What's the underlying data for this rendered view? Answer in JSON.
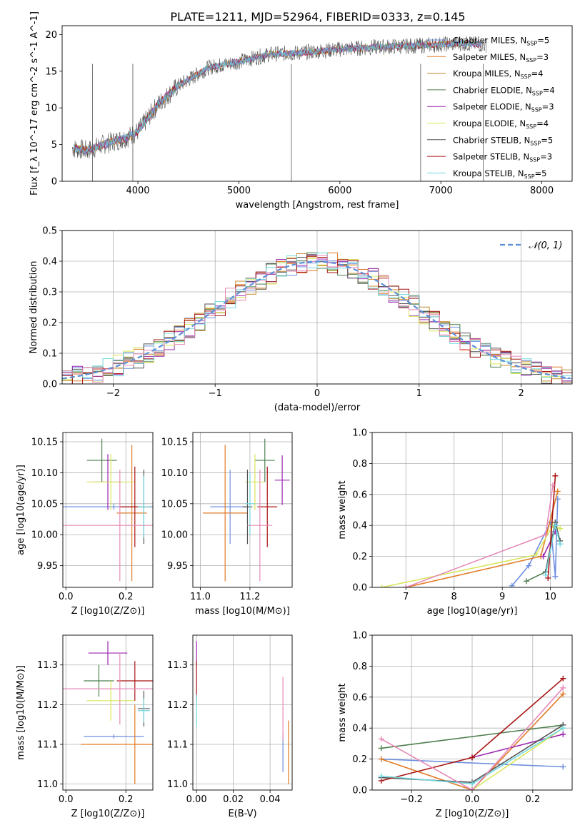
{
  "figure": {
    "title": "PLATE=1211, MJD=52964, FIBERID=0333, z=0.145"
  },
  "colors": {
    "Chabrier MILES": "#6f8fdf",
    "Salpeter MILES": "#e07b26",
    "Kroupa MILES": "#c08a2a",
    "Chabrier ELODIE": "#4f7f4f",
    "Salpeter ELODIE": "#9b27af",
    "Kroupa ELODIE": "#d9e65a",
    "Chabrier STELIB": "#555555",
    "Salpeter STELIB": "#aa1515",
    "Kroupa STELIB": "#70d8df",
    "extra": "#e68ab8",
    "normal": "#5b8fd6"
  },
  "chart_data": [
    {
      "id": "spectrum",
      "type": "line",
      "title": "PLATE=1211, MJD=52964, FIBERID=0333, z=0.145",
      "xlabel": "wavelength [Angstrom, rest frame]",
      "ylabel": "Flux [f_λ 10^-17 erg cm^-2 s^-1 A^-1]",
      "xlim": [
        3250,
        8300
      ],
      "ylim": [
        0,
        21.2
      ],
      "xticks": [
        4000,
        5000,
        6000,
        7000,
        8000
      ],
      "yticks": [
        0,
        5,
        10,
        15,
        20
      ],
      "grid": false,
      "legend_position": "top-right",
      "legend": [
        {
          "label": "Chabrier MILES, N",
          "sub": "SSP",
          "tail": "=5"
        },
        {
          "label": "Salpeter MILES, N",
          "sub": "SSP",
          "tail": "=3"
        },
        {
          "label": "Kroupa MILES, N",
          "sub": "SSP",
          "tail": "=4"
        },
        {
          "label": "Chabrier ELODIE, N",
          "sub": "SSP",
          "tail": "=4"
        },
        {
          "label": "Salpeter ELODIE, N",
          "sub": "SSP",
          "tail": "=3"
        },
        {
          "label": "Kroupa ELODIE, N",
          "sub": "SSP",
          "tail": "=4"
        },
        {
          "label": "Chabrier STELIB, N",
          "sub": "SSP",
          "tail": "=5"
        },
        {
          "label": "Salpeter STELIB, N",
          "sub": "SSP",
          "tail": "=3"
        },
        {
          "label": "Kroupa STELIB, N",
          "sub": "SSP",
          "tail": "=5"
        }
      ],
      "continuum_x": [
        3350,
        3500,
        3700,
        3900,
        4000,
        4200,
        4400,
        4700,
        5000,
        5300,
        5600,
        6000,
        6400,
        6800,
        7200,
        7450
      ],
      "continuum_y": [
        4.5,
        4.2,
        5.2,
        6.0,
        6.8,
        10.5,
        13.0,
        15.5,
        16.3,
        17.3,
        17.5,
        18.0,
        18.3,
        18.5,
        18.8,
        18.6
      ],
      "spikes": [
        [
          3550,
          0
        ],
        [
          3950,
          0
        ],
        [
          5520,
          0
        ],
        [
          6800,
          0
        ],
        [
          7420,
          0
        ]
      ]
    },
    {
      "id": "residuals",
      "type": "line",
      "xlabel": "(data-model)/error",
      "ylabel": "Normed distribution",
      "xlim": [
        -2.5,
        2.5
      ],
      "ylim": [
        0,
        0.5
      ],
      "xticks": [
        -2,
        -1,
        0,
        1,
        2
      ],
      "yticks": [
        0.0,
        0.1,
        0.2,
        0.3,
        0.4,
        0.5
      ],
      "grid": true,
      "legend_position": "top-right",
      "legend": [
        {
          "label": "𝒩(0, 1)"
        }
      ],
      "bin_width": 0.1,
      "series_note": "9 step histograms scattered around N(0,1)"
    },
    {
      "id": "age-vs-Z",
      "type": "scatter",
      "xlabel": "Z [log10(Z/Z⊙)]",
      "ylabel": "age [log10(age/yr)]",
      "xlim": [
        -0.01,
        0.29
      ],
      "ylim": [
        9.915,
        10.165
      ],
      "xticks": [
        0.0,
        0.2
      ],
      "yticks": [
        9.95,
        10.0,
        10.05,
        10.1,
        10.15
      ],
      "grid": true,
      "points": [
        {
          "series": "Chabrier MILES",
          "x": 0.16,
          "xerr": 0.2,
          "y": 10.045,
          "yerr": 0.005
        },
        {
          "series": "Salpeter MILES",
          "x": 0.22,
          "xerr": 0.05,
          "y": 10.035,
          "yerr": 0.11
        },
        {
          "series": "Chabrier ELODIE",
          "x": 0.12,
          "xerr": 0.05,
          "y": 10.12,
          "yerr": 0.035
        },
        {
          "series": "Salpeter ELODIE",
          "x": 0.14,
          "xerr": 0.05,
          "y": 10.085,
          "yerr": 0.045
        },
        {
          "series": "Kroupa ELODIE",
          "x": 0.15,
          "xerr": 0.08,
          "y": 10.085,
          "yerr": 0.045
        },
        {
          "series": "Chabrier STELIB",
          "x": 0.26,
          "xerr": 0.02,
          "y": 10.045,
          "yerr": 0.06
        },
        {
          "series": "Salpeter STELIB",
          "x": 0.23,
          "xerr": 0.05,
          "y": 10.045,
          "yerr": 0.065
        },
        {
          "series": "Kroupa STELIB",
          "x": 0.26,
          "xerr": 0.02,
          "y": 10.045,
          "yerr": 0.05
        },
        {
          "series": "extra",
          "x": 0.18,
          "xerr": 0.2,
          "y": 10.015,
          "yerr": 0.09
        }
      ]
    },
    {
      "id": "age-vs-mass",
      "type": "scatter",
      "xlabel": "mass [log10(M/M⊙)]",
      "xlim": [
        10.97,
        11.37
      ],
      "ylim": [
        9.915,
        10.165
      ],
      "xticks": [
        11.0,
        11.2
      ],
      "yticks": [
        9.95,
        10.0,
        10.05,
        10.1,
        10.15
      ],
      "grid": true,
      "points": [
        {
          "series": "Chabrier MILES",
          "x": 11.12,
          "xerr": 0.08,
          "y": 10.045,
          "yerr": 0.06
        },
        {
          "series": "Salpeter MILES",
          "x": 11.1,
          "xerr": 0.09,
          "y": 10.035,
          "yerr": 0.11
        },
        {
          "series": "Chabrier ELODIE",
          "x": 11.26,
          "xerr": 0.04,
          "y": 10.12,
          "yerr": 0.035
        },
        {
          "series": "Salpeter ELODIE",
          "x": 11.33,
          "xerr": 0.03,
          "y": 10.088,
          "yerr": 0.04
        },
        {
          "series": "Kroupa ELODIE",
          "x": 11.22,
          "xerr": 0.04,
          "y": 10.085,
          "yerr": 0.045
        },
        {
          "series": "Chabrier STELIB",
          "x": 11.19,
          "xerr": 0.02,
          "y": 10.045,
          "yerr": 0.06
        },
        {
          "series": "Salpeter STELIB",
          "x": 11.27,
          "xerr": 0.04,
          "y": 10.045,
          "yerr": 0.065
        },
        {
          "series": "Kroupa STELIB",
          "x": 11.2,
          "xerr": 0.02,
          "y": 10.05,
          "yerr": 0.05
        },
        {
          "series": "extra",
          "x": 11.24,
          "xerr": 0.05,
          "y": 10.015,
          "yerr": 0.09
        }
      ]
    },
    {
      "id": "massweight-vs-age",
      "type": "line",
      "xlabel": "age [log10(age/yr)]",
      "ylabel": "mass weight",
      "xlim": [
        6.3,
        10.45
      ],
      "ylim": [
        0.0,
        1.0
      ],
      "xticks": [
        7,
        8,
        9,
        10
      ],
      "yticks": [
        0.0,
        0.2,
        0.4,
        0.6,
        0.8,
        1.0
      ],
      "grid": true,
      "series": [
        {
          "name": "Chabrier MILES",
          "x": [
            9.2,
            9.55,
            10.0,
            10.1,
            10.15
          ],
          "y": [
            0.01,
            0.14,
            0.42,
            0.07,
            0.57
          ]
        },
        {
          "name": "Salpeter MILES",
          "x": [
            7.0,
            9.8,
            10.15
          ],
          "y": [
            0.0,
            0.2,
            0.62
          ]
        },
        {
          "name": "Chabrier ELODIE",
          "x": [
            9.5,
            9.9,
            10.1
          ],
          "y": [
            0.04,
            0.1,
            0.42
          ]
        },
        {
          "name": "Salpeter ELODIE",
          "x": [
            9.85,
            10.1
          ],
          "y": [
            0.2,
            0.36
          ]
        },
        {
          "name": "Kroupa ELODIE",
          "x": [
            6.5,
            9.7,
            10.05,
            10.2
          ],
          "y": [
            0.0,
            0.21,
            0.4,
            0.38
          ]
        },
        {
          "name": "Chabrier STELIB",
          "x": [
            9.9,
            10.1,
            10.2
          ],
          "y": [
            0.1,
            0.42,
            0.3
          ]
        },
        {
          "name": "Salpeter STELIB",
          "x": [
            9.95,
            10.1
          ],
          "y": [
            0.06,
            0.72
          ]
        },
        {
          "name": "Kroupa STELIB",
          "x": [
            9.9,
            10.1,
            10.2
          ],
          "y": [
            0.08,
            0.4,
            0.28
          ]
        },
        {
          "name": "extra",
          "x": [
            7.0,
            9.9,
            10.05
          ],
          "y": [
            0.0,
            0.34,
            0.66
          ]
        }
      ]
    },
    {
      "id": "mass-vs-Z",
      "type": "scatter",
      "xlabel": "Z [log10(Z/Z⊙)]",
      "ylabel": "mass [log10(M/M⊙)]",
      "xlim": [
        -0.01,
        0.29
      ],
      "ylim": [
        10.985,
        11.375
      ],
      "xticks": [
        0.0,
        0.2
      ],
      "yticks": [
        11.0,
        11.1,
        11.2,
        11.3
      ],
      "grid": true,
      "points": [
        {
          "series": "Chabrier MILES",
          "x": 0.16,
          "xerr": 0.1,
          "y": 11.12,
          "yerr": 0.005
        },
        {
          "series": "Salpeter MILES",
          "x": 0.23,
          "xerr": 0.18,
          "y": 11.1,
          "yerr": 0.1
        },
        {
          "series": "Chabrier ELODIE",
          "x": 0.11,
          "xerr": 0.05,
          "y": 11.26,
          "yerr": 0.04
        },
        {
          "series": "Salpeter ELODIE",
          "x": 0.14,
          "xerr": 0.065,
          "y": 11.33,
          "yerr": 0.03
        },
        {
          "series": "Kroupa ELODIE",
          "x": 0.15,
          "xerr": 0.08,
          "y": 11.21,
          "yerr": 0.05
        },
        {
          "series": "Chabrier STELIB",
          "x": 0.26,
          "xerr": 0.02,
          "y": 11.19,
          "yerr": 0.045
        },
        {
          "series": "Salpeter STELIB",
          "x": 0.23,
          "xerr": 0.06,
          "y": 11.26,
          "yerr": 0.05
        },
        {
          "series": "Kroupa STELIB",
          "x": 0.26,
          "xerr": 0.02,
          "y": 11.185,
          "yerr": 0.03
        },
        {
          "series": "extra",
          "x": 0.18,
          "xerr": 0.2,
          "y": 11.24,
          "yerr": 0.09
        }
      ]
    },
    {
      "id": "mass-vs-EBV",
      "type": "scatter",
      "xlabel": "E(B-V)",
      "xlim": [
        -0.002,
        0.052
      ],
      "ylim": [
        10.985,
        11.375
      ],
      "xticks": [
        0.0,
        0.02,
        0.04
      ],
      "yticks": [
        11.0,
        11.1,
        11.2,
        11.3
      ],
      "grid": true,
      "points": [
        {
          "series": "Chabrier MILES",
          "x": 0.047,
          "xerr": 0,
          "y": 11.08,
          "yerr": 0.05
        },
        {
          "series": "Salpeter MILES",
          "x": 0.05,
          "xerr": 0,
          "y": 11.08,
          "yerr": 0.08
        },
        {
          "series": "Salpeter ELODIE",
          "x": 0.0,
          "xerr": 0,
          "y": 11.33,
          "yerr": 0.03
        },
        {
          "series": "Salpeter STELIB",
          "x": 0.0,
          "xerr": 0,
          "y": 11.26,
          "yerr": 0.05
        },
        {
          "series": "Kroupa STELIB",
          "x": 0.0,
          "xerr": 0,
          "y": 11.185,
          "yerr": 0.04
        },
        {
          "series": "extra",
          "x": 0.047,
          "xerr": 0,
          "y": 11.19,
          "yerr": 0.08
        }
      ]
    },
    {
      "id": "massweight-vs-Z",
      "type": "line",
      "xlabel": "Z [log10(Z/Z⊙)]",
      "ylabel": "mass weight",
      "xlim": [
        -0.33,
        0.33
      ],
      "ylim": [
        0.0,
        1.0
      ],
      "xticks": [
        -0.2,
        0.0,
        0.2
      ],
      "yticks": [
        0.0,
        0.2,
        0.4,
        0.6,
        0.8,
        1.0
      ],
      "grid": true,
      "series": [
        {
          "name": "Chabrier MILES",
          "x": [
            -0.3,
            0.3
          ],
          "y": [
            0.2,
            0.15
          ]
        },
        {
          "name": "Salpeter MILES",
          "x": [
            -0.3,
            0.0,
            0.3
          ],
          "y": [
            0.2,
            0.0,
            0.62
          ]
        },
        {
          "name": "Chabrier ELODIE",
          "x": [
            -0.3,
            0.3
          ],
          "y": [
            0.27,
            0.42
          ]
        },
        {
          "name": "Salpeter ELODIE",
          "x": [
            0.0,
            0.3
          ],
          "y": [
            0.21,
            0.36
          ]
        },
        {
          "name": "Kroupa ELODIE",
          "x": [
            0.0,
            0.3
          ],
          "y": [
            0.0,
            0.4
          ]
        },
        {
          "name": "Chabrier STELIB",
          "x": [
            -0.3,
            0.0,
            0.3
          ],
          "y": [
            0.08,
            0.05,
            0.42
          ]
        },
        {
          "name": "Salpeter STELIB",
          "x": [
            -0.3,
            0.0,
            0.3
          ],
          "y": [
            0.06,
            0.21,
            0.72
          ]
        },
        {
          "name": "Kroupa STELIB",
          "x": [
            -0.3,
            0.0,
            0.3
          ],
          "y": [
            0.09,
            0.04,
            0.4
          ]
        },
        {
          "name": "extra",
          "x": [
            -0.3,
            0.0,
            0.3
          ],
          "y": [
            0.33,
            0.0,
            0.66
          ]
        }
      ]
    }
  ]
}
